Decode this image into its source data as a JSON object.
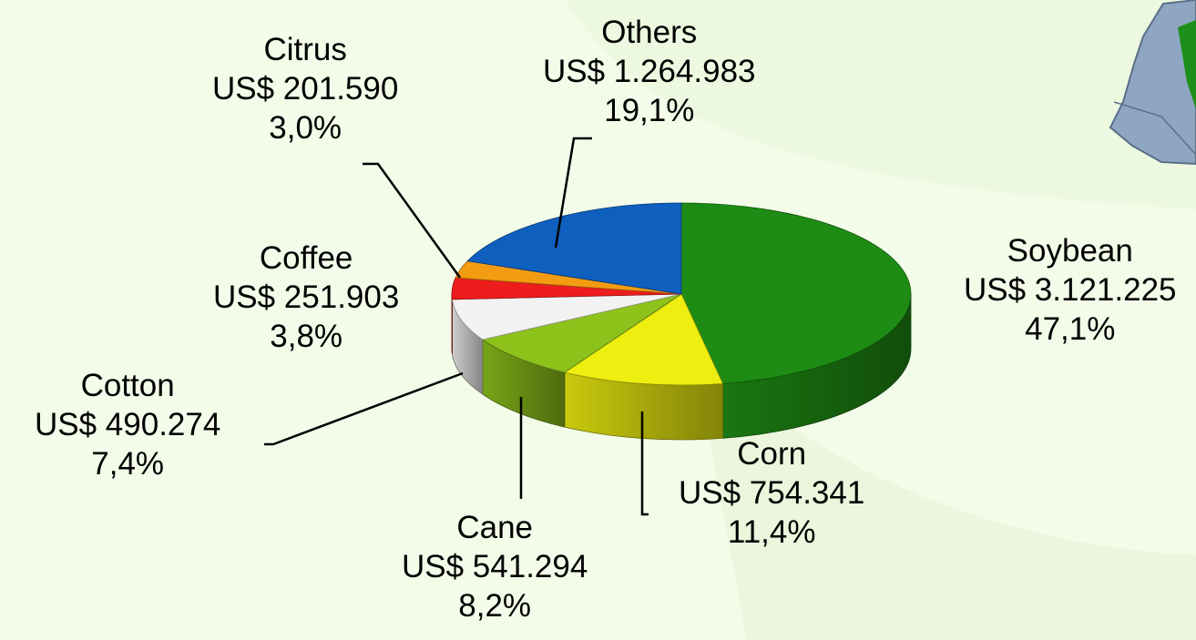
{
  "chart_data": {
    "type": "pie",
    "style": "3d",
    "title": "",
    "slices": [
      {
        "label": "Soybean",
        "value_text": "US$ 3.121.225",
        "percent_text": "47,1%",
        "value": 3121225,
        "percent": 47.1,
        "color": "#1e8c14"
      },
      {
        "label": "Corn",
        "value_text": "US$ 754.341",
        "percent_text": "11,4%",
        "value": 754341,
        "percent": 11.4,
        "color": "#eeee10"
      },
      {
        "label": "Cane",
        "value_text": "US$ 541.294",
        "percent_text": "8,2%",
        "value": 541294,
        "percent": 8.2,
        "color": "#8dc21b"
      },
      {
        "label": "Cotton",
        "value_text": "US$ 490.274",
        "percent_text": "7,4%",
        "value": 490274,
        "percent": 7.4,
        "color": "#f2f2f2"
      },
      {
        "label": "Coffee",
        "value_text": "US$ 251.903",
        "percent_text": "3,8%",
        "value": 251903,
        "percent": 3.8,
        "color": "#ee1c1c"
      },
      {
        "label": "Citrus",
        "value_text": "US$ 201.590",
        "percent_text": "3,0%",
        "value": 201590,
        "percent": 3.0,
        "color": "#f39c12"
      },
      {
        "label": "Others",
        "value_text": "US$ 1.264.983",
        "percent_text": "19,1%",
        "value": 1264983,
        "percent": 19.1,
        "color": "#0f5fbf"
      }
    ]
  }
}
